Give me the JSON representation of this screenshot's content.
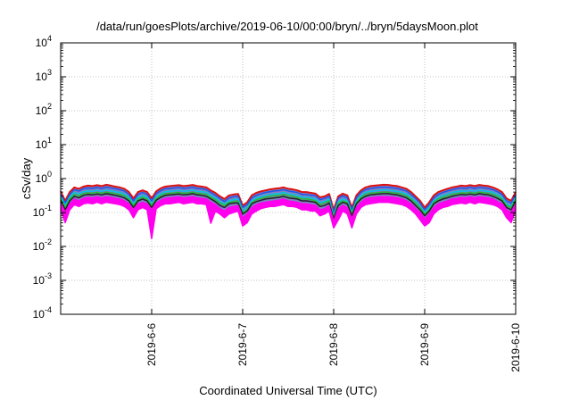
{
  "chart_data": {
    "type": "area",
    "title": "/data/run/goesPlots/archive/2019-06-10/00:00/bryn/../bryn/5daysMoon.plot",
    "xlabel": "Coordinated Universal Time (UTC)",
    "ylabel": "cSv/day",
    "yscale": "log",
    "ylim": [
      0.0001,
      10000
    ],
    "y_ticks": [
      {
        "base": "10",
        "exp": "-4",
        "value": 0.0001
      },
      {
        "base": "10",
        "exp": "-3",
        "value": 0.001
      },
      {
        "base": "10",
        "exp": "-2",
        "value": 0.01
      },
      {
        "base": "10",
        "exp": "-1",
        "value": 0.1
      },
      {
        "base": "10",
        "exp": "0",
        "value": 1
      },
      {
        "base": "10",
        "exp": "1",
        "value": 10
      },
      {
        "base": "10",
        "exp": "2",
        "value": 100
      },
      {
        "base": "10",
        "exp": "3",
        "value": 1000
      },
      {
        "base": "10",
        "exp": "4",
        "value": 10000
      }
    ],
    "xlim": [
      "2019-06-05T00:00",
      "2019-06-10T00:00"
    ],
    "x_ticks": [
      {
        "label": "2019-6-6",
        "date": "2019-06-06"
      },
      {
        "label": "2019-6-7",
        "date": "2019-06-07"
      },
      {
        "label": "2019-6-8",
        "date": "2019-06-08"
      },
      {
        "label": "2019-6-9",
        "date": "2019-06-09"
      },
      {
        "label": "2019-6-10",
        "date": "2019-06-10"
      }
    ],
    "grid": true,
    "x": [
      "2019-06-05T00:00",
      "2019-06-05T01:12",
      "2019-06-05T02:24",
      "2019-06-05T03:36",
      "2019-06-05T04:48",
      "2019-06-05T06:00",
      "2019-06-05T07:12",
      "2019-06-05T08:24",
      "2019-06-05T09:36",
      "2019-06-05T10:48",
      "2019-06-05T12:00",
      "2019-06-05T13:12",
      "2019-06-05T14:24",
      "2019-06-05T15:36",
      "2019-06-05T16:48",
      "2019-06-05T18:00",
      "2019-06-05T19:12",
      "2019-06-05T20:24",
      "2019-06-05T21:36",
      "2019-06-05T22:48",
      "2019-06-06T00:00",
      "2019-06-06T01:12",
      "2019-06-06T02:24",
      "2019-06-06T03:36",
      "2019-06-06T04:48",
      "2019-06-06T06:00",
      "2019-06-06T07:12",
      "2019-06-06T08:24",
      "2019-06-06T09:36",
      "2019-06-06T10:48",
      "2019-06-06T12:00",
      "2019-06-06T13:12",
      "2019-06-06T14:24",
      "2019-06-06T15:36",
      "2019-06-06T16:48",
      "2019-06-06T18:00",
      "2019-06-06T19:12",
      "2019-06-06T20:24",
      "2019-06-06T21:36",
      "2019-06-06T22:48",
      "2019-06-07T00:00",
      "2019-06-07T01:12",
      "2019-06-07T02:24",
      "2019-06-07T03:36",
      "2019-06-07T04:48",
      "2019-06-07T06:00",
      "2019-06-07T07:12",
      "2019-06-07T08:24",
      "2019-06-07T09:36",
      "2019-06-07T10:48",
      "2019-06-07T12:00",
      "2019-06-07T13:12",
      "2019-06-07T14:24",
      "2019-06-07T15:36",
      "2019-06-07T16:48",
      "2019-06-07T18:00",
      "2019-06-07T19:12",
      "2019-06-07T20:24",
      "2019-06-07T21:36",
      "2019-06-07T22:48",
      "2019-06-08T00:00",
      "2019-06-08T01:12",
      "2019-06-08T02:24",
      "2019-06-08T03:36",
      "2019-06-08T04:48",
      "2019-06-08T06:00",
      "2019-06-08T07:12",
      "2019-06-08T08:24",
      "2019-06-08T09:36",
      "2019-06-08T10:48",
      "2019-06-08T12:00",
      "2019-06-08T13:12",
      "2019-06-08T14:24",
      "2019-06-08T15:36",
      "2019-06-08T16:48",
      "2019-06-08T18:00",
      "2019-06-08T19:12",
      "2019-06-08T20:24",
      "2019-06-08T21:36",
      "2019-06-08T22:48",
      "2019-06-09T00:00",
      "2019-06-09T01:12",
      "2019-06-09T02:24",
      "2019-06-09T03:36",
      "2019-06-09T04:48",
      "2019-06-09T06:00",
      "2019-06-09T07:12",
      "2019-06-09T08:24",
      "2019-06-09T09:36",
      "2019-06-09T10:48",
      "2019-06-09T12:00",
      "2019-06-09T13:12",
      "2019-06-09T14:24",
      "2019-06-09T15:36",
      "2019-06-09T16:48",
      "2019-06-09T18:00",
      "2019-06-09T19:12",
      "2019-06-09T20:24",
      "2019-06-09T21:36",
      "2019-06-09T22:48",
      "2019-06-10T00:00"
    ],
    "series": [
      {
        "color": "#dd1111",
        "values": [
          0.42,
          0.22,
          0.4,
          0.55,
          0.5,
          0.58,
          0.62,
          0.6,
          0.64,
          0.6,
          0.66,
          0.62,
          0.58,
          0.55,
          0.5,
          0.4,
          0.26,
          0.4,
          0.45,
          0.4,
          0.26,
          0.42,
          0.52,
          0.58,
          0.6,
          0.62,
          0.64,
          0.6,
          0.62,
          0.65,
          0.6,
          0.58,
          0.55,
          0.45,
          0.38,
          0.3,
          0.25,
          0.32,
          0.34,
          0.35,
          0.16,
          0.2,
          0.32,
          0.38,
          0.42,
          0.45,
          0.48,
          0.5,
          0.52,
          0.55,
          0.5,
          0.48,
          0.45,
          0.4,
          0.4,
          0.38,
          0.36,
          0.28,
          0.3,
          0.35,
          0.12,
          0.3,
          0.36,
          0.32,
          0.14,
          0.32,
          0.45,
          0.55,
          0.6,
          0.62,
          0.64,
          0.66,
          0.65,
          0.62,
          0.6,
          0.55,
          0.5,
          0.4,
          0.3,
          0.22,
          0.14,
          0.2,
          0.32,
          0.4,
          0.45,
          0.5,
          0.55,
          0.58,
          0.62,
          0.6,
          0.64,
          0.6,
          0.65,
          0.62,
          0.6,
          0.55,
          0.48,
          0.4,
          0.26,
          0.22,
          0.4
        ]
      },
      {
        "color": "#2255ee",
        "values": [
          0.36,
          0.19,
          0.34,
          0.47,
          0.43,
          0.5,
          0.53,
          0.51,
          0.55,
          0.51,
          0.56,
          0.53,
          0.5,
          0.47,
          0.43,
          0.34,
          0.22,
          0.34,
          0.39,
          0.34,
          0.22,
          0.36,
          0.44,
          0.5,
          0.51,
          0.53,
          0.55,
          0.51,
          0.53,
          0.55,
          0.51,
          0.5,
          0.47,
          0.39,
          0.32,
          0.26,
          0.21,
          0.27,
          0.29,
          0.3,
          0.14,
          0.17,
          0.27,
          0.32,
          0.36,
          0.39,
          0.41,
          0.43,
          0.44,
          0.47,
          0.43,
          0.41,
          0.39,
          0.34,
          0.34,
          0.32,
          0.31,
          0.24,
          0.26,
          0.3,
          0.1,
          0.26,
          0.31,
          0.27,
          0.12,
          0.27,
          0.39,
          0.47,
          0.51,
          0.53,
          0.55,
          0.56,
          0.55,
          0.53,
          0.51,
          0.47,
          0.43,
          0.34,
          0.26,
          0.19,
          0.12,
          0.17,
          0.27,
          0.34,
          0.39,
          0.43,
          0.47,
          0.5,
          0.53,
          0.51,
          0.55,
          0.51,
          0.55,
          0.53,
          0.51,
          0.47,
          0.41,
          0.34,
          0.22,
          0.19,
          0.34
        ]
      },
      {
        "color": "#00c8e0",
        "values": [
          0.3,
          0.16,
          0.28,
          0.39,
          0.35,
          0.41,
          0.43,
          0.42,
          0.45,
          0.42,
          0.46,
          0.43,
          0.41,
          0.39,
          0.35,
          0.28,
          0.18,
          0.28,
          0.32,
          0.28,
          0.18,
          0.29,
          0.36,
          0.41,
          0.42,
          0.43,
          0.45,
          0.42,
          0.43,
          0.46,
          0.42,
          0.41,
          0.39,
          0.32,
          0.27,
          0.21,
          0.18,
          0.22,
          0.24,
          0.25,
          0.11,
          0.14,
          0.22,
          0.27,
          0.29,
          0.32,
          0.34,
          0.35,
          0.36,
          0.39,
          0.35,
          0.34,
          0.32,
          0.28,
          0.28,
          0.27,
          0.25,
          0.2,
          0.21,
          0.25,
          0.08,
          0.21,
          0.25,
          0.22,
          0.1,
          0.22,
          0.32,
          0.39,
          0.42,
          0.43,
          0.45,
          0.46,
          0.46,
          0.43,
          0.42,
          0.39,
          0.35,
          0.28,
          0.21,
          0.15,
          0.1,
          0.14,
          0.22,
          0.28,
          0.32,
          0.35,
          0.39,
          0.41,
          0.43,
          0.42,
          0.45,
          0.42,
          0.46,
          0.43,
          0.42,
          0.39,
          0.34,
          0.28,
          0.18,
          0.15,
          0.28
        ]
      },
      {
        "color": "#22bb33",
        "values": [
          0.26,
          0.14,
          0.25,
          0.34,
          0.31,
          0.36,
          0.38,
          0.37,
          0.39,
          0.37,
          0.4,
          0.38,
          0.36,
          0.34,
          0.31,
          0.25,
          0.16,
          0.25,
          0.28,
          0.25,
          0.16,
          0.26,
          0.32,
          0.36,
          0.37,
          0.38,
          0.39,
          0.37,
          0.38,
          0.4,
          0.37,
          0.36,
          0.34,
          0.28,
          0.24,
          0.19,
          0.16,
          0.2,
          0.21,
          0.22,
          0.1,
          0.12,
          0.2,
          0.24,
          0.26,
          0.28,
          0.3,
          0.31,
          0.32,
          0.34,
          0.31,
          0.3,
          0.28,
          0.25,
          0.25,
          0.24,
          0.22,
          0.17,
          0.19,
          0.22,
          0.07,
          0.19,
          0.22,
          0.2,
          0.09,
          0.2,
          0.28,
          0.34,
          0.37,
          0.38,
          0.39,
          0.4,
          0.4,
          0.38,
          0.37,
          0.34,
          0.31,
          0.25,
          0.19,
          0.14,
          0.09,
          0.12,
          0.2,
          0.25,
          0.28,
          0.31,
          0.34,
          0.36,
          0.38,
          0.37,
          0.39,
          0.37,
          0.4,
          0.38,
          0.37,
          0.34,
          0.3,
          0.25,
          0.16,
          0.14,
          0.25
        ]
      },
      {
        "color": "#222222",
        "values": [
          0.23,
          0.12,
          0.22,
          0.3,
          0.27,
          0.32,
          0.34,
          0.33,
          0.35,
          0.33,
          0.36,
          0.34,
          0.32,
          0.3,
          0.27,
          0.22,
          0.14,
          0.22,
          0.25,
          0.22,
          0.14,
          0.23,
          0.28,
          0.32,
          0.33,
          0.34,
          0.35,
          0.33,
          0.34,
          0.36,
          0.33,
          0.32,
          0.3,
          0.25,
          0.21,
          0.16,
          0.14,
          0.18,
          0.19,
          0.19,
          0.09,
          0.11,
          0.18,
          0.21,
          0.23,
          0.25,
          0.26,
          0.27,
          0.28,
          0.3,
          0.27,
          0.26,
          0.25,
          0.22,
          0.22,
          0.21,
          0.2,
          0.15,
          0.16,
          0.19,
          0.065,
          0.16,
          0.2,
          0.18,
          0.08,
          0.18,
          0.25,
          0.3,
          0.33,
          0.34,
          0.35,
          0.36,
          0.36,
          0.34,
          0.33,
          0.3,
          0.27,
          0.22,
          0.16,
          0.12,
          0.08,
          0.11,
          0.18,
          0.22,
          0.25,
          0.27,
          0.3,
          0.32,
          0.34,
          0.33,
          0.35,
          0.33,
          0.36,
          0.34,
          0.33,
          0.3,
          0.26,
          0.22,
          0.14,
          0.12,
          0.22
        ]
      },
      {
        "color": "#ff00ee",
        "values": [
          0.19,
          0.1,
          0.18,
          0.25,
          0.22,
          0.26,
          0.28,
          0.27,
          0.29,
          0.27,
          0.29,
          0.28,
          0.26,
          0.25,
          0.22,
          0.18,
          0.12,
          0.18,
          0.2,
          0.18,
          0.12,
          0.19,
          0.23,
          0.26,
          0.27,
          0.28,
          0.29,
          0.27,
          0.28,
          0.29,
          0.27,
          0.26,
          0.25,
          0.2,
          0.17,
          0.13,
          0.11,
          0.14,
          0.15,
          0.16,
          0.07,
          0.09,
          0.14,
          0.17,
          0.19,
          0.2,
          0.21,
          0.22,
          0.23,
          0.25,
          0.22,
          0.21,
          0.2,
          0.18,
          0.18,
          0.17,
          0.16,
          0.12,
          0.13,
          0.16,
          0.055,
          0.13,
          0.16,
          0.14,
          0.065,
          0.14,
          0.2,
          0.25,
          0.27,
          0.28,
          0.29,
          0.29,
          0.29,
          0.28,
          0.27,
          0.25,
          0.22,
          0.18,
          0.13,
          0.1,
          0.065,
          0.09,
          0.14,
          0.18,
          0.2,
          0.22,
          0.25,
          0.26,
          0.28,
          0.27,
          0.29,
          0.27,
          0.29,
          0.28,
          0.27,
          0.25,
          0.21,
          0.18,
          0.12,
          0.1,
          0.18
        ]
      },
      {
        "color": "#ff00ee",
        "values": [
          0.13,
          0.05,
          0.12,
          0.17,
          0.15,
          0.18,
          0.19,
          0.18,
          0.2,
          0.18,
          0.2,
          0.19,
          0.18,
          0.17,
          0.15,
          0.12,
          0.07,
          0.12,
          0.14,
          0.12,
          0.017,
          0.13,
          0.16,
          0.18,
          0.18,
          0.19,
          0.2,
          0.18,
          0.19,
          0.2,
          0.18,
          0.18,
          0.17,
          0.048,
          0.11,
          0.09,
          0.07,
          0.09,
          0.1,
          0.11,
          0.04,
          0.05,
          0.09,
          0.11,
          0.13,
          0.14,
          0.15,
          0.15,
          0.16,
          0.17,
          0.15,
          0.15,
          0.14,
          0.12,
          0.12,
          0.11,
          0.11,
          0.08,
          0.09,
          0.11,
          0.035,
          0.06,
          0.11,
          0.09,
          0.035,
          0.09,
          0.14,
          0.17,
          0.18,
          0.19,
          0.2,
          0.2,
          0.2,
          0.19,
          0.18,
          0.17,
          0.15,
          0.12,
          0.09,
          0.06,
          0.04,
          0.05,
          0.09,
          0.12,
          0.14,
          0.15,
          0.17,
          0.18,
          0.19,
          0.18,
          0.2,
          0.18,
          0.2,
          0.19,
          0.18,
          0.17,
          0.15,
          0.12,
          0.07,
          0.05,
          0.12
        ]
      }
    ]
  }
}
